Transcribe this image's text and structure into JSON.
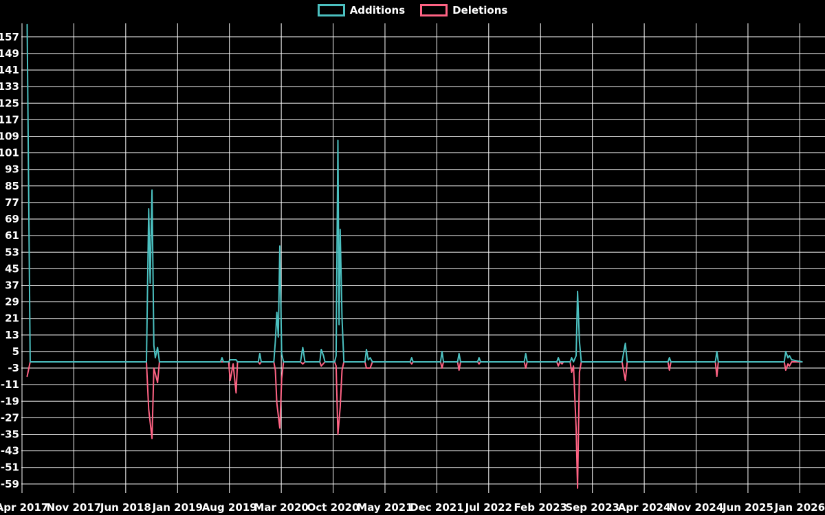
{
  "colors": {
    "background": "#000000",
    "grid": "#ffffff",
    "text": "#ffffff",
    "additions": "#4bc0c0",
    "deletions": "#ff6384"
  },
  "chart_data": {
    "type": "line",
    "title": "",
    "xlabel": "",
    "ylabel": "",
    "grid": true,
    "legend_position": "top",
    "y_ticks": [
      157,
      149,
      141,
      133,
      125,
      117,
      109,
      101,
      93,
      85,
      77,
      69,
      61,
      53,
      45,
      37,
      29,
      21,
      13,
      5,
      -3,
      -11,
      -19,
      -27,
      -35,
      -43,
      -51,
      -59
    ],
    "ylim": [
      -59,
      157
    ],
    "x_tick_labels": [
      "Apr 2017",
      "Nov 2017",
      "Jun 2018",
      "Jan 2019",
      "Aug 2019",
      "Mar 2020",
      "Oct 2020",
      "May 2021",
      "Dec 2021",
      "Jul 2022",
      "Feb 2023",
      "Sep 2023",
      "Apr 2024",
      "Nov 2024",
      "Jun 2025",
      "Jan 2026"
    ],
    "x_tick_month_offsets": [
      0,
      7,
      14,
      21,
      28,
      35,
      42,
      49,
      56,
      63,
      70,
      77,
      84,
      91,
      98,
      105
    ],
    "xlim_months": [
      0,
      108.4
    ],
    "series": [
      {
        "name": "Additions",
        "color": "#4bc0c0",
        "points": [
          [
            0.7,
            163
          ],
          [
            1.1,
            0
          ],
          [
            16.8,
            0
          ],
          [
            17.1,
            74
          ],
          [
            17.3,
            38
          ],
          [
            17.55,
            83
          ],
          [
            17.8,
            8
          ],
          [
            18.0,
            2
          ],
          [
            18.3,
            7
          ],
          [
            18.55,
            0
          ],
          [
            26.8,
            0
          ],
          [
            27.0,
            2
          ],
          [
            27.2,
            0
          ],
          [
            27.9,
            0
          ],
          [
            28.1,
            1
          ],
          [
            28.9,
            1
          ],
          [
            29.1,
            0
          ],
          [
            31.9,
            0
          ],
          [
            32.1,
            4
          ],
          [
            32.3,
            0
          ],
          [
            34.0,
            0
          ],
          [
            34.2,
            10
          ],
          [
            34.4,
            24
          ],
          [
            34.6,
            12
          ],
          [
            34.8,
            56
          ],
          [
            35.05,
            4
          ],
          [
            35.3,
            0
          ],
          [
            37.6,
            0
          ],
          [
            37.9,
            7
          ],
          [
            38.2,
            0
          ],
          [
            40.2,
            0
          ],
          [
            40.4,
            6
          ],
          [
            40.7,
            3
          ],
          [
            40.9,
            0
          ],
          [
            42.2,
            0
          ],
          [
            42.4,
            3
          ],
          [
            42.65,
            107
          ],
          [
            42.8,
            18
          ],
          [
            42.95,
            64
          ],
          [
            43.2,
            21
          ],
          [
            43.45,
            0
          ],
          [
            46.3,
            0
          ],
          [
            46.5,
            6
          ],
          [
            46.75,
            1
          ],
          [
            47.0,
            2
          ],
          [
            47.3,
            0
          ],
          [
            52.4,
            0
          ],
          [
            52.6,
            2
          ],
          [
            52.8,
            0
          ],
          [
            56.5,
            0
          ],
          [
            56.7,
            5
          ],
          [
            56.9,
            0
          ],
          [
            58.8,
            0
          ],
          [
            59.0,
            4
          ],
          [
            59.2,
            0
          ],
          [
            61.5,
            0
          ],
          [
            61.7,
            2
          ],
          [
            61.9,
            0
          ],
          [
            67.8,
            0
          ],
          [
            68.0,
            4
          ],
          [
            68.2,
            0
          ],
          [
            72.2,
            0
          ],
          [
            72.4,
            2
          ],
          [
            72.6,
            0
          ],
          [
            74.0,
            0
          ],
          [
            74.2,
            2
          ],
          [
            74.45,
            0
          ],
          [
            74.8,
            3
          ],
          [
            75.0,
            34
          ],
          [
            75.25,
            10
          ],
          [
            75.5,
            0
          ],
          [
            81.0,
            0
          ],
          [
            81.2,
            4
          ],
          [
            81.45,
            9
          ],
          [
            81.7,
            0
          ],
          [
            87.2,
            0
          ],
          [
            87.4,
            2
          ],
          [
            87.6,
            0
          ],
          [
            93.6,
            0
          ],
          [
            93.8,
            5
          ],
          [
            94.0,
            0
          ],
          [
            102.9,
            0
          ],
          [
            103.1,
            5
          ],
          [
            103.4,
            2
          ],
          [
            103.6,
            3
          ],
          [
            103.9,
            1
          ],
          [
            105.3,
            0
          ]
        ]
      },
      {
        "name": "Deletions",
        "color": "#ff6384",
        "points": [
          [
            0.7,
            -7
          ],
          [
            1.1,
            0
          ],
          [
            16.8,
            0
          ],
          [
            17.1,
            -23
          ],
          [
            17.55,
            -37
          ],
          [
            17.8,
            -3
          ],
          [
            18.3,
            -10
          ],
          [
            18.55,
            0
          ],
          [
            27.9,
            0
          ],
          [
            28.1,
            -9
          ],
          [
            28.5,
            -1
          ],
          [
            28.9,
            -15
          ],
          [
            29.1,
            0
          ],
          [
            31.9,
            0
          ],
          [
            32.1,
            -1
          ],
          [
            32.3,
            0
          ],
          [
            34.0,
            0
          ],
          [
            34.2,
            -4
          ],
          [
            34.4,
            -20
          ],
          [
            34.8,
            -32
          ],
          [
            35.05,
            -8
          ],
          [
            35.3,
            0
          ],
          [
            37.6,
            0
          ],
          [
            37.9,
            -1
          ],
          [
            38.2,
            0
          ],
          [
            40.2,
            0
          ],
          [
            40.4,
            -2
          ],
          [
            40.9,
            0
          ],
          [
            42.2,
            0
          ],
          [
            42.4,
            -2
          ],
          [
            42.65,
            -35
          ],
          [
            42.95,
            -22
          ],
          [
            43.2,
            -4
          ],
          [
            43.45,
            0
          ],
          [
            46.3,
            0
          ],
          [
            46.5,
            -3
          ],
          [
            47.0,
            -3
          ],
          [
            47.3,
            0
          ],
          [
            52.4,
            0
          ],
          [
            52.6,
            -1
          ],
          [
            52.8,
            0
          ],
          [
            56.5,
            0
          ],
          [
            56.7,
            -3
          ],
          [
            56.9,
            0
          ],
          [
            58.8,
            0
          ],
          [
            59.0,
            -4
          ],
          [
            59.2,
            0
          ],
          [
            61.5,
            0
          ],
          [
            61.7,
            -1
          ],
          [
            61.9,
            0
          ],
          [
            67.8,
            0
          ],
          [
            68.0,
            -3
          ],
          [
            68.2,
            0
          ],
          [
            72.2,
            0
          ],
          [
            72.4,
            -2
          ],
          [
            72.6,
            0
          ],
          [
            72.9,
            -1
          ],
          [
            73.1,
            0
          ],
          [
            74.0,
            0
          ],
          [
            74.2,
            -5
          ],
          [
            74.45,
            -2
          ],
          [
            74.8,
            -32
          ],
          [
            75.0,
            -61
          ],
          [
            75.25,
            -5
          ],
          [
            75.5,
            0
          ],
          [
            81.0,
            0
          ],
          [
            81.2,
            -4
          ],
          [
            81.45,
            -9
          ],
          [
            81.7,
            0
          ],
          [
            87.2,
            0
          ],
          [
            87.4,
            -4
          ],
          [
            87.6,
            0
          ],
          [
            93.6,
            0
          ],
          [
            93.8,
            -7
          ],
          [
            94.0,
            0
          ],
          [
            102.9,
            0
          ],
          [
            103.1,
            -4
          ],
          [
            103.4,
            -1
          ],
          [
            103.6,
            -2
          ],
          [
            103.9,
            0
          ],
          [
            105.3,
            0
          ]
        ]
      }
    ]
  },
  "legend": {
    "items": [
      {
        "label": "Additions",
        "color": "#4bc0c0"
      },
      {
        "label": "Deletions",
        "color": "#ff6384"
      }
    ]
  }
}
